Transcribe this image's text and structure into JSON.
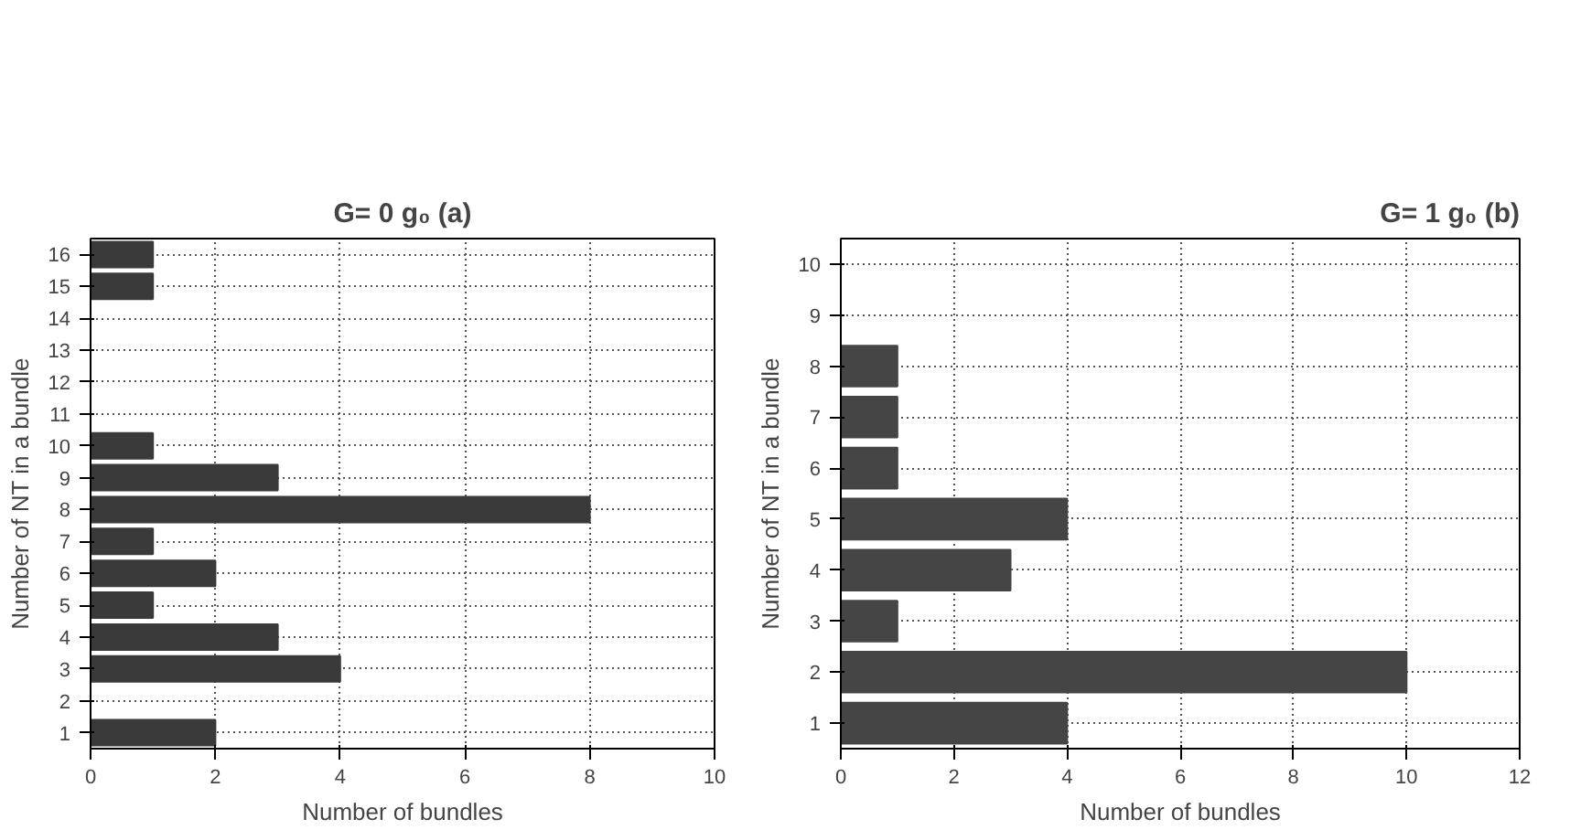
{
  "chart_data": [
    {
      "type": "bar",
      "orientation": "horizontal",
      "title": "G= 0 g₀ (a)",
      "xlabel": "Number of bundles",
      "ylabel": "Number of NT in a bundle",
      "categories": [
        "16",
        "15",
        "14",
        "13",
        "12",
        "11",
        "10",
        "9",
        "8",
        "7",
        "6",
        "5",
        "4",
        "3",
        "2",
        "1"
      ],
      "values": [
        1,
        1,
        0,
        0,
        0,
        0,
        1,
        3,
        8,
        1,
        2,
        1,
        3,
        4,
        0,
        2
      ],
      "color": "#3a3a3a",
      "xlim": [
        0,
        10
      ],
      "xticks": [
        0,
        2,
        4,
        6,
        8,
        10
      ],
      "grid": true
    },
    {
      "type": "bar",
      "orientation": "horizontal",
      "title": "G= 1 g₀ (b)",
      "xlabel": "Number of bundles",
      "ylabel": "Number of NT in a bundle",
      "categories": [
        "10",
        "9",
        "8",
        "7",
        "6",
        "5",
        "4",
        "3",
        "2",
        "1"
      ],
      "values": [
        0,
        0,
        1,
        1,
        1,
        4,
        3,
        1,
        10,
        4
      ],
      "color": "#454545",
      "xlim": [
        0,
        12
      ],
      "xticks": [
        0,
        2,
        4,
        6,
        8,
        10,
        12
      ],
      "grid": true
    }
  ]
}
